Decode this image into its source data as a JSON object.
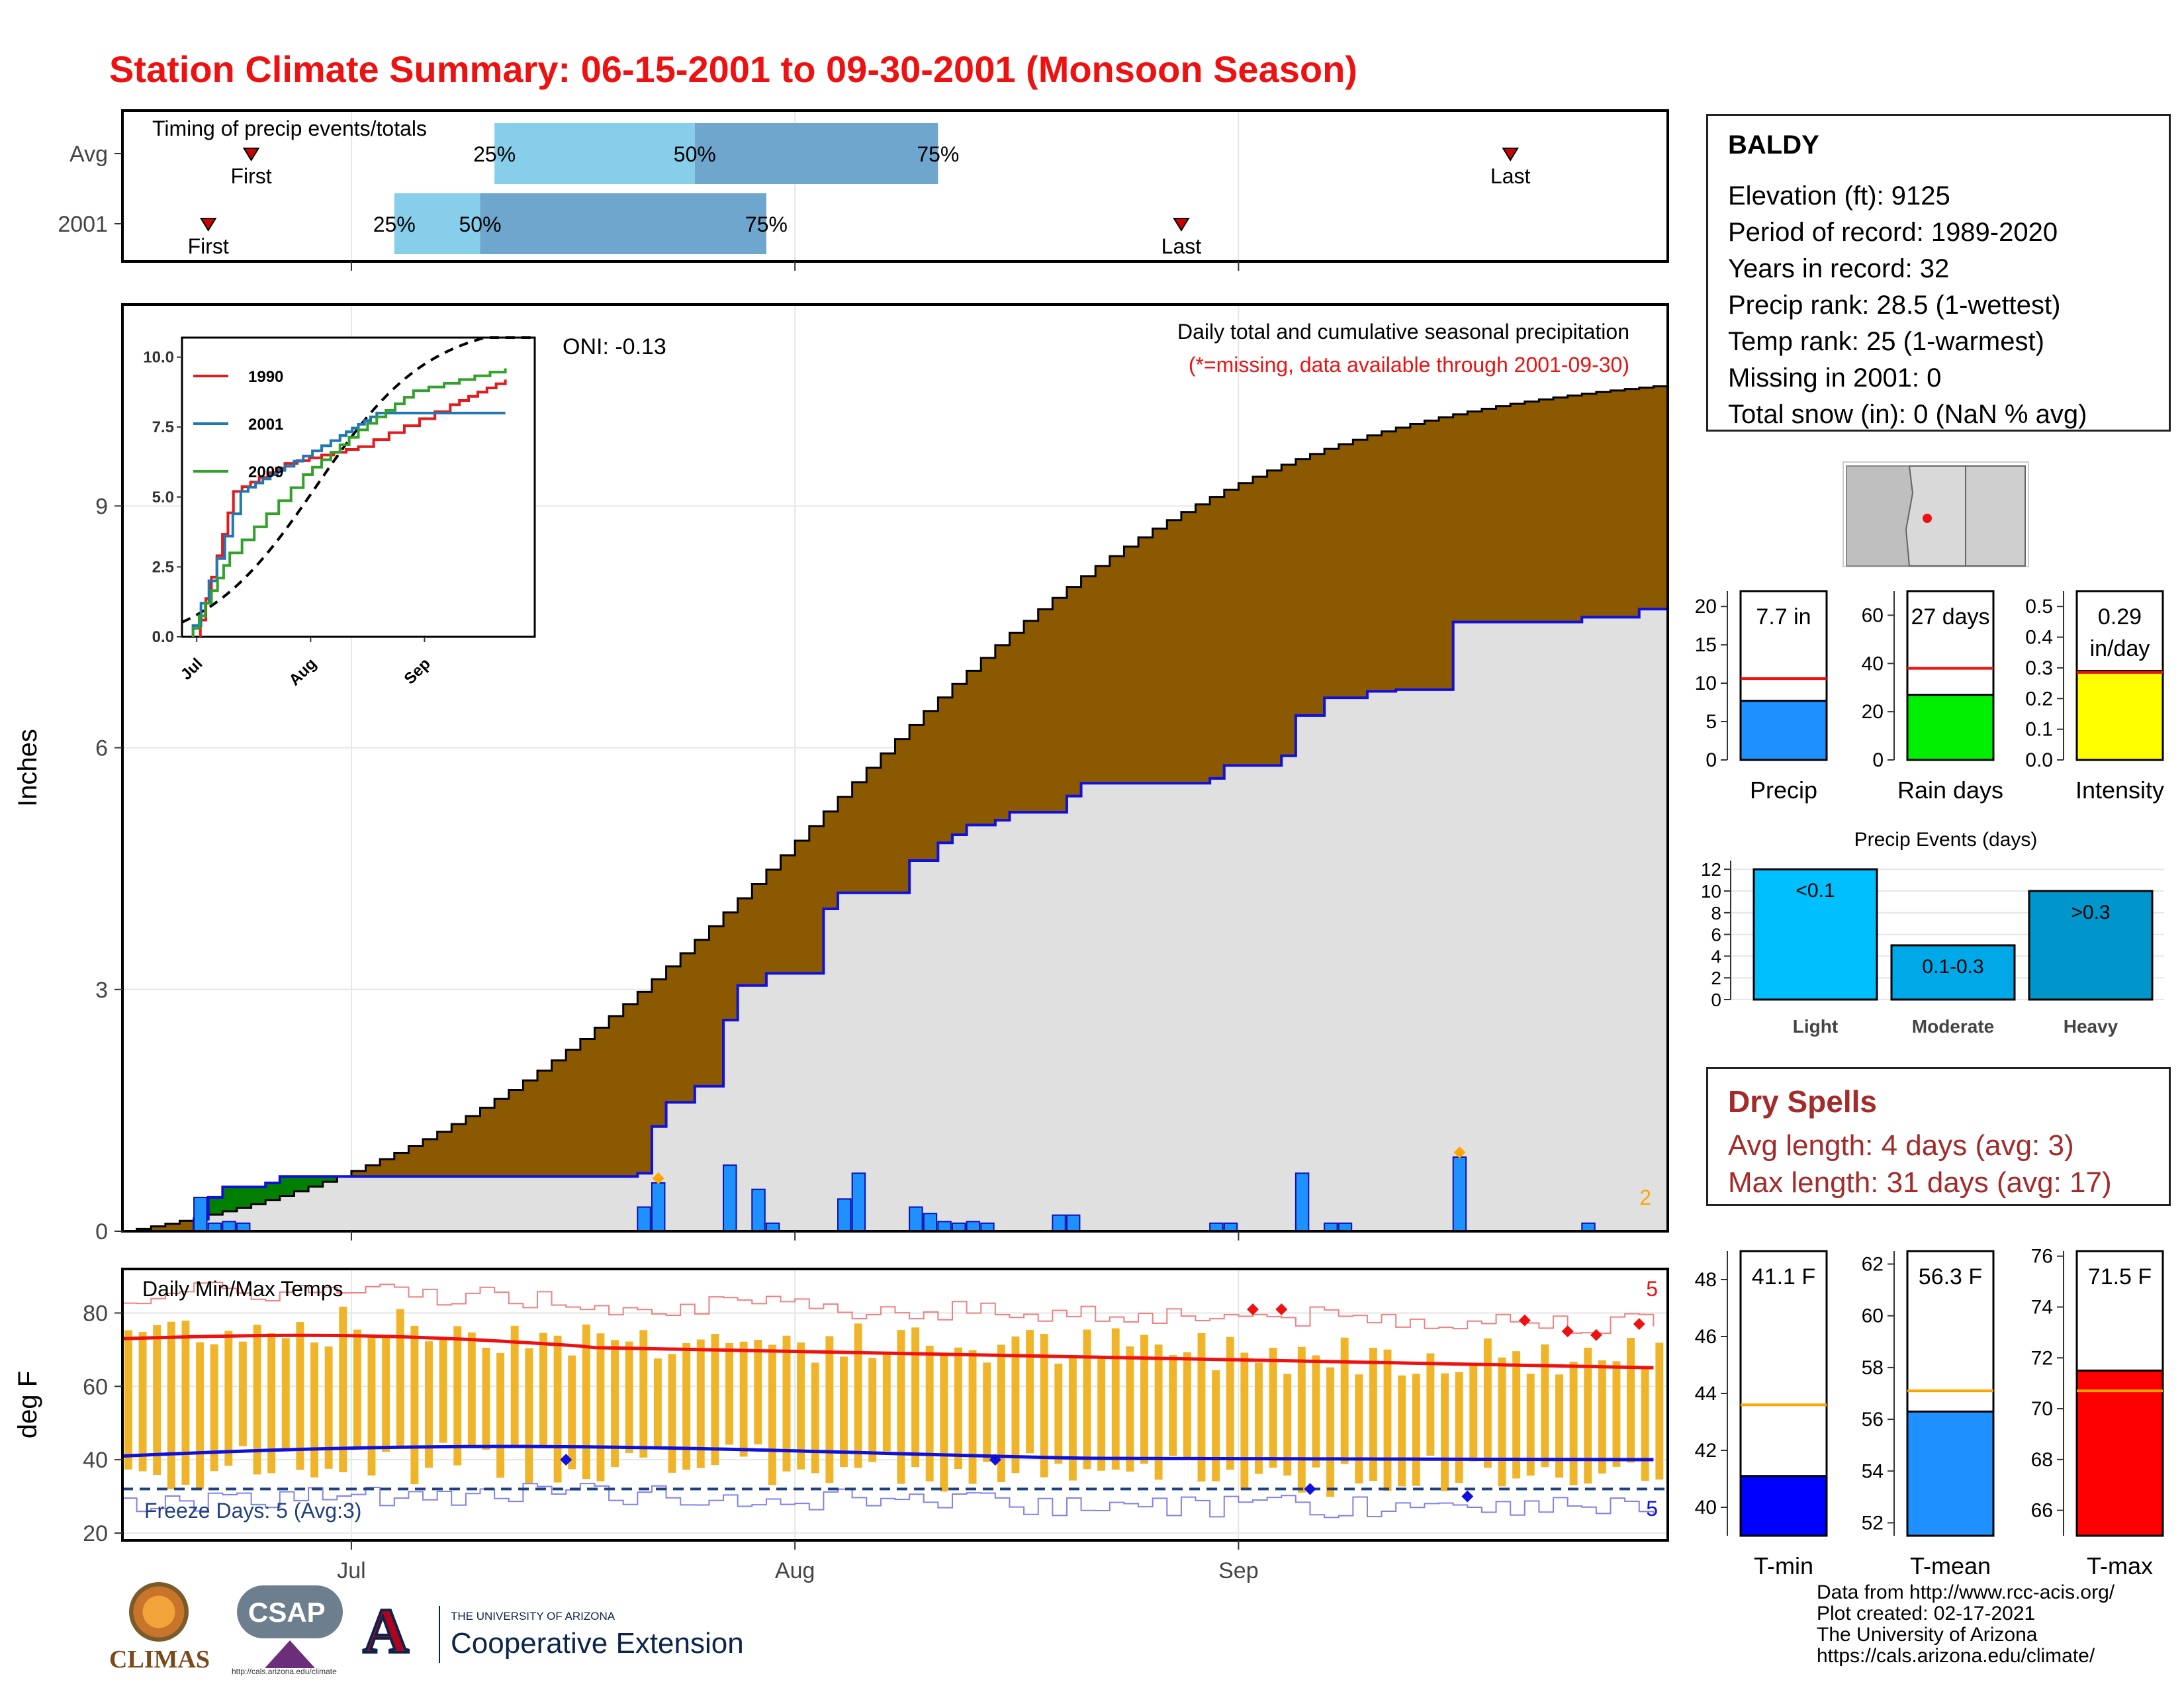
{
  "title": "Station Climate Summary: 06-15-2001 to 09-30-2001 (Monsoon Season)",
  "colors": {
    "title": "#ee1111",
    "precip_cum": "#8b5a00",
    "above_avg": "#007f00",
    "below_fill": "#e0e0e0",
    "daily_bar": "#1e90ff",
    "temp_bar": "#f0b429",
    "tmax_line": "#ee1111",
    "tmin_line": "#1010dd"
  },
  "timing": {
    "title": "Timing of precip events/totals",
    "rows": [
      {
        "label": "Avg",
        "first": "First",
        "last": "Last",
        "q25": "25%",
        "q50": "50%",
        "q75": "75%",
        "first_date": "2001-06-24",
        "last_date": "2001-09-20",
        "q25_date": "2001-07-11",
        "q50_date": "2001-07-25",
        "q75_date": "2001-08-11"
      },
      {
        "label": "2001",
        "first": "First",
        "last": "Last",
        "q25": "25%",
        "q50": "50%",
        "q75": "75%",
        "first_date": "2001-06-21",
        "last_date": "2001-08-28",
        "q25_date": "2001-07-04",
        "q50_date": "2001-07-10",
        "q75_date": "2001-07-30"
      }
    ]
  },
  "precip_panel": {
    "title": "Daily total and cumulative seasonal precipitation",
    "subtitle": "(*=missing, data available through 2001-09-30)",
    "ylabel": "Inches",
    "yticks": [
      "0",
      "3",
      "6",
      "9"
    ],
    "oni": "ONI: -0.13",
    "corner_count": "2"
  },
  "inset": {
    "yticks": [
      "0.0",
      "2.5",
      "5.0",
      "7.5",
      "10.0"
    ],
    "xticks": [
      "Jul",
      "Aug",
      "Sep"
    ],
    "legend": [
      {
        "name": "1990",
        "color": "#e31a1c"
      },
      {
        "name": "2001",
        "color": "#1f78b4"
      },
      {
        "name": "2009",
        "color": "#33a02c"
      }
    ]
  },
  "temp_panel": {
    "title": "Daily Min/Max Temps",
    "ylabel": "deg F",
    "yticks": [
      "20",
      "40",
      "60",
      "80"
    ],
    "freeze": "Freeze Days: 5 (Avg:3)",
    "tmax_count": "5",
    "tmin_count": "5"
  },
  "xaxis": {
    "ticks": [
      "Jul",
      "Aug",
      "Sep"
    ]
  },
  "station": {
    "name": "BALDY",
    "lines": [
      "Elevation (ft): 9125",
      "Period of record: 1989-2020",
      "Years in record: 32",
      "Precip rank: 28.5 (1-wettest)",
      "Temp rank: 25 (1-warmest)",
      "Missing in 2001: 0",
      "Total snow (in): 0 (NaN % avg)"
    ]
  },
  "summary_bars": [
    {
      "label": "Precip",
      "value_text": "7.7 in",
      "value": 7.7,
      "avg": 10.6,
      "ymax": 22,
      "ticks": [
        "0",
        "5",
        "10",
        "15",
        "20"
      ],
      "tickvals": [
        0,
        5,
        10,
        15,
        20
      ],
      "color": "#1e90ff"
    },
    {
      "label": "Rain days",
      "value_text": "27 days",
      "value": 27,
      "avg": 38,
      "ymax": 70,
      "ticks": [
        "0",
        "20",
        "40",
        "60"
      ],
      "tickvals": [
        0,
        20,
        40,
        60
      ],
      "color": "#00ee00"
    },
    {
      "label": "Intensity",
      "value_text": "0.29",
      "value_text2": "in/day",
      "value": 0.29,
      "avg": 0.285,
      "ymax": 0.55,
      "ticks": [
        "0.0",
        "0.1",
        "0.2",
        "0.3",
        "0.4",
        "0.5"
      ],
      "tickvals": [
        0,
        0.1,
        0.2,
        0.3,
        0.4,
        0.5
      ],
      "color": "#ffff00"
    }
  ],
  "events": {
    "title": "Precip Events (days)",
    "yticks": [
      "0",
      "2",
      "4",
      "6",
      "8",
      "10",
      "12"
    ],
    "bars": [
      {
        "label": "Light",
        "range": "<0.1",
        "value": 12,
        "color": "#00bfff"
      },
      {
        "label": "Moderate",
        "range": "0.1-0.3",
        "value": 5,
        "color": "#00a8e8"
      },
      {
        "label": "Heavy",
        "range": ">0.3",
        "value": 10,
        "color": "#0096cc"
      }
    ]
  },
  "dry_spells": {
    "title": "Dry Spells",
    "avg": "Avg length: 4 days (avg: 3)",
    "max": "Max length: 31 days (avg: 17)"
  },
  "temp_bars": [
    {
      "label": "T-min",
      "value_text": "41.1 F",
      "value": 41.1,
      "avg": 43.6,
      "ymin": 39,
      "ymax": 49,
      "ticks": [
        "40",
        "42",
        "44",
        "46",
        "48"
      ],
      "tickvals": [
        40,
        42,
        44,
        46,
        48
      ],
      "color": "#0000ff"
    },
    {
      "label": "T-mean",
      "value_text": "56.3 F",
      "value": 56.3,
      "avg": 57.1,
      "ymin": 51.5,
      "ymax": 62.5,
      "ticks": [
        "52",
        "54",
        "56",
        "58",
        "60",
        "62"
      ],
      "tickvals": [
        52,
        54,
        56,
        58,
        60,
        62
      ],
      "color": "#1e90ff"
    },
    {
      "label": "T-max",
      "value_text": "71.5 F",
      "value": 71.5,
      "avg": 70.7,
      "ymin": 65,
      "ymax": 76.2,
      "ticks": [
        "66",
        "68",
        "70",
        "72",
        "74",
        "76"
      ],
      "tickvals": [
        66,
        68,
        70,
        72,
        74,
        76
      ],
      "color": "#ff0000"
    }
  ],
  "logos": {
    "climas": "CLIMAS",
    "csap": "CSAP",
    "csap_url": "http://cals.arizona.edu/climate",
    "ua_small": "THE UNIVERSITY OF ARIZONA",
    "ua_big": "Cooperative Extension"
  },
  "credits": [
    "Data from http://www.rcc-acis.org/",
    "Plot created: 02-17-2021",
    "The University of Arizona",
    "https://cals.arizona.edu/climate/"
  ],
  "chart_data": [
    {
      "type": "area",
      "name": "cumulative precipitation",
      "x_start": "2001-06-15",
      "x_end": "2001-09-30",
      "ylim": [
        0,
        11.5
      ],
      "cum_2001_steps": [
        [
          0,
          0
        ],
        [
          5,
          0.15
        ],
        [
          6,
          0.42
        ],
        [
          7,
          0.55
        ],
        [
          10,
          0.6
        ],
        [
          11,
          0.68
        ],
        [
          27,
          0.68
        ],
        [
          36,
          0.72
        ],
        [
          37,
          1.3
        ],
        [
          38,
          1.6
        ],
        [
          40,
          1.8
        ],
        [
          42,
          2.62
        ],
        [
          43,
          3.05
        ],
        [
          45,
          3.2
        ],
        [
          49,
          4.0
        ],
        [
          50,
          4.2
        ],
        [
          55,
          4.6
        ],
        [
          57,
          4.82
        ],
        [
          58,
          4.92
        ],
        [
          59,
          5.04
        ],
        [
          61,
          5.1
        ],
        [
          62,
          5.2
        ],
        [
          66,
          5.4
        ],
        [
          67,
          5.56
        ],
        [
          76,
          5.62
        ],
        [
          77,
          5.78
        ],
        [
          81,
          5.9
        ],
        [
          82,
          6.4
        ],
        [
          84,
          6.62
        ],
        [
          87,
          6.7
        ],
        [
          89,
          6.72
        ],
        [
          93,
          7.56
        ],
        [
          102,
          7.62
        ],
        [
          106,
          7.72
        ],
        [
          108,
          7.72
        ]
      ],
      "cum_avg_start": 0,
      "cum_avg_end": 10.5,
      "daily_bars": [
        [
          5,
          0.42
        ],
        [
          6,
          0.1
        ],
        [
          7,
          0.12
        ],
        [
          8,
          0.1
        ],
        [
          36,
          0.3
        ],
        [
          37,
          0.6
        ],
        [
          42,
          0.82
        ],
        [
          44,
          0.52
        ],
        [
          45,
          0.1
        ],
        [
          50,
          0.4
        ],
        [
          51,
          0.72
        ],
        [
          55,
          0.3
        ],
        [
          56,
          0.22
        ],
        [
          57,
          0.12
        ],
        [
          58,
          0.1
        ],
        [
          59,
          0.12
        ],
        [
          60,
          0.1
        ],
        [
          65,
          0.2
        ],
        [
          66,
          0.2
        ],
        [
          76,
          0.1
        ],
        [
          77,
          0.1
        ],
        [
          82,
          0.72
        ],
        [
          84,
          0.1
        ],
        [
          85,
          0.1
        ],
        [
          93,
          0.92
        ],
        [
          102,
          0.1
        ]
      ]
    },
    {
      "type": "line",
      "name": "inset cumulative",
      "series": [
        {
          "name": "1990",
          "values": [
            [
              17,
              0.6
            ],
            [
              26,
              5.2
            ],
            [
              40,
              6.2
            ],
            [
              60,
              6.8
            ],
            [
              85,
              8.3
            ],
            [
              100,
              9.2
            ]
          ]
        },
        {
          "name": "2001",
          "values": [
            [
              15,
              0.4
            ],
            [
              28,
              5.2
            ],
            [
              40,
              6.1
            ],
            [
              55,
              7.2
            ],
            [
              65,
              8.0
            ],
            [
              100,
              8.0
            ]
          ]
        },
        {
          "name": "2009",
          "values": [
            [
              15,
              0.3
            ],
            [
              25,
              3.0
            ],
            [
              45,
              5.8
            ],
            [
              60,
              7.4
            ],
            [
              75,
              8.8
            ],
            [
              100,
              9.6
            ]
          ]
        }
      ]
    },
    {
      "type": "bar",
      "name": "daily temps",
      "ylim": [
        18,
        92
      ],
      "tmax_mean_start": 73,
      "tmax_mean_end": 65,
      "tmin_mean_start": 39,
      "tmin_mean_end": 38,
      "freeze_line": 32
    }
  ]
}
